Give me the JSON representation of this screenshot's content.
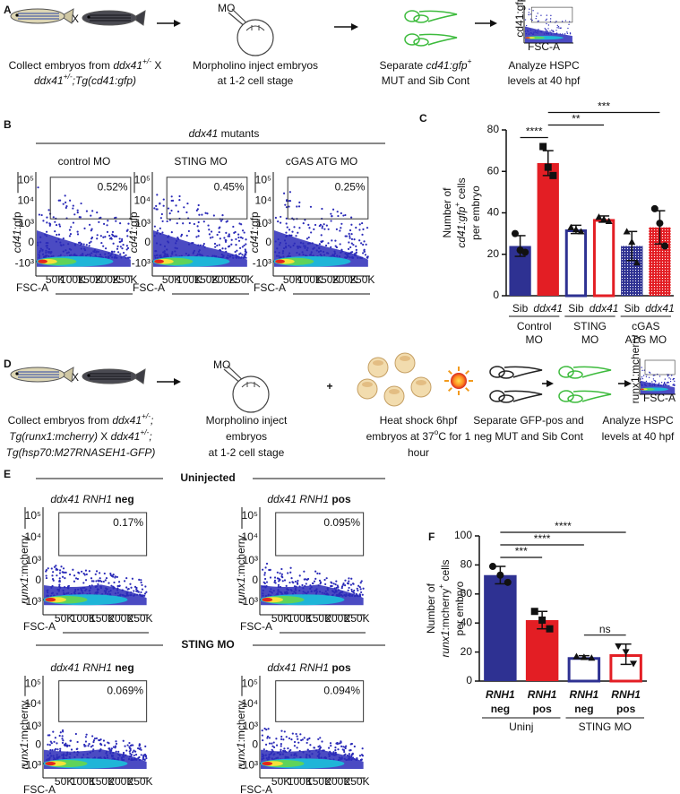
{
  "panel_a": {
    "label": "A",
    "cross": "X",
    "mo": "MO",
    "steps": [
      [
        [
          "Collect embryos from ",
          "ddx41",
          "+/-",
          " X"
        ],
        [
          "ddx41",
          "+/-",
          ";Tg(cd41:gfp)"
        ]
      ],
      [
        [
          "Morpholino inject embryos"
        ],
        [
          "at 1-2 cell stage"
        ]
      ],
      [
        [
          "Separate ",
          "cd41:gfp",
          "+"
        ],
        [
          "MUT and Sib Cont"
        ]
      ],
      [
        [
          "Analyze HSPC"
        ],
        [
          "levels at 40 hpf"
        ]
      ]
    ],
    "thumb": {
      "ylabel": "cd41:gfp",
      "xlabel": "FSC-A"
    }
  },
  "panel_b": {
    "label": "B",
    "header": [
      "ddx41",
      " mutants"
    ],
    "ylabel": [
      "cd41",
      ":gfp"
    ],
    "xlabel": "FSC-A",
    "plots": [
      {
        "title": "control MO",
        "percent": "0.52%"
      },
      {
        "title": "STING MO",
        "percent": "0.45%"
      },
      {
        "title": "cGAS ATG MO",
        "percent": "0.25%"
      }
    ]
  },
  "panel_d": {
    "label": "D",
    "cross": "X",
    "mo": "MO",
    "plus": "+",
    "steps": [
      [
        [
          "Collect embryos from ",
          "ddx41",
          "+/-",
          ";"
        ],
        [
          "Tg(runx1:mcherry)",
          " X ",
          "ddx41",
          "+/-",
          ";"
        ],
        [
          "Tg(hsp70:M27RNASEH1-GFP)"
        ]
      ],
      [
        [
          "Morpholino inject"
        ],
        [
          "embryos"
        ],
        [
          "at 1-2 cell stage"
        ]
      ],
      [
        [
          "Heat shock 6hpf"
        ],
        [
          "embryos at 37",
          "o",
          "C for 1"
        ],
        [
          "hour"
        ]
      ],
      [
        [
          "Separate GFP-pos and"
        ],
        [
          "neg MUT and Sib Cont"
        ]
      ],
      [
        [
          "Analyze HSPC"
        ],
        [
          "levels at 40 hpf"
        ]
      ]
    ],
    "thumb": {
      "ylabel": "runx1:mcherry",
      "xlabel": "FSC-A"
    }
  },
  "panel_e": {
    "label": "E",
    "ylabel": [
      "runx1",
      ":mcherry"
    ],
    "xlabel": "FSC-A",
    "sections": [
      {
        "header": "Uninjected",
        "plots": [
          {
            "title": [
              "ddx41 RNH1",
              " neg"
            ],
            "percent": "0.17%"
          },
          {
            "title": [
              "ddx41 RNH1",
              " pos"
            ],
            "percent": "0.095%"
          }
        ]
      },
      {
        "header": "STING MO",
        "plots": [
          {
            "title": [
              "ddx41 RNH1",
              " neg"
            ],
            "percent": "0.069%"
          },
          {
            "title": [
              "ddx41 RNH1",
              " pos"
            ],
            "percent": "0.094%"
          }
        ]
      }
    ]
  },
  "flow_axis": {
    "xticks": [
      "50K",
      "100K",
      "150K",
      "200K",
      "250K"
    ],
    "yticks": [
      "10⁵",
      "10⁴",
      "10³",
      "0",
      "-10³"
    ]
  },
  "chart_data": [
    {
      "type": "bar",
      "label": "C",
      "ylabel": [
        [
          "Number of"
        ],
        [
          "cd41",
          ":gfp",
          "+",
          " cells"
        ],
        [
          "per embryo"
        ]
      ],
      "categories": [
        "Sib",
        "ddx41",
        "Sib",
        "ddx41",
        "Sib",
        "ddx41"
      ],
      "groups": [
        [
          "Control",
          "MO"
        ],
        [
          "STING",
          "MO"
        ],
        [
          "cGAS",
          "ATG MO"
        ]
      ],
      "values": [
        24,
        64,
        32,
        37,
        24,
        33
      ],
      "errors": [
        5,
        6,
        2,
        1.5,
        7,
        8
      ],
      "points": [
        [
          30,
          22,
          21
        ],
        [
          72,
          62,
          58
        ],
        [
          33,
          32,
          31
        ],
        [
          38,
          37,
          36
        ],
        [
          31,
          26,
          16
        ],
        [
          42,
          35,
          24
        ]
      ],
      "colors": [
        "#2e3192",
        "#e31e24",
        "#2e3192",
        "#e31e24",
        "#2e3192",
        "#e31e24"
      ],
      "styles": [
        "solid",
        "solid",
        "open",
        "open",
        "dotted",
        "dotted"
      ],
      "markers": [
        "circle",
        "square",
        "triangle",
        "triangle",
        "triangle",
        "circle"
      ],
      "ylim": [
        0,
        80
      ],
      "yticks": [
        0,
        20,
        40,
        60,
        80
      ],
      "significance": [
        {
          "bars": [
            0,
            1
          ],
          "label": "****"
        },
        {
          "bars": [
            1,
            3
          ],
          "label": "**"
        },
        {
          "bars": [
            1,
            5
          ],
          "label": "***"
        }
      ]
    },
    {
      "type": "bar",
      "label": "F",
      "ylabel": [
        [
          "Number of"
        ],
        [
          "runx1",
          ":mcherry",
          "+",
          " cells"
        ],
        [
          "per embryo"
        ]
      ],
      "categories": [
        [
          "RNH1",
          "neg"
        ],
        [
          "RNH1",
          "pos"
        ],
        [
          "RNH1",
          "neg"
        ],
        [
          "RNH1",
          "pos"
        ]
      ],
      "groups": [
        [
          "Uninj"
        ],
        [
          "STING MO"
        ]
      ],
      "values": [
        73,
        42,
        16.5,
        18.5
      ],
      "errors": [
        6,
        6,
        1,
        7
      ],
      "points": [
        [
          79,
          73,
          68
        ],
        [
          48,
          42,
          36
        ],
        [
          17,
          16.5,
          16
        ],
        [
          24,
          20,
          12
        ]
      ],
      "colors": [
        "#2e3192",
        "#e31e24",
        "#2e3192",
        "#e31e24"
      ],
      "styles": [
        "solid",
        "solid",
        "open",
        "open"
      ],
      "markers": [
        "circle",
        "square",
        "triangle",
        "triangle-down"
      ],
      "ylim": [
        0,
        100
      ],
      "yticks": [
        0,
        20,
        40,
        60,
        80,
        100
      ],
      "significance": [
        {
          "bars": [
            2,
            3
          ],
          "label": "ns"
        },
        {
          "bars": [
            0,
            1
          ],
          "label": "***"
        },
        {
          "bars": [
            0,
            2
          ],
          "label": "****"
        },
        {
          "bars": [
            0,
            3
          ],
          "label": "****"
        }
      ]
    }
  ]
}
